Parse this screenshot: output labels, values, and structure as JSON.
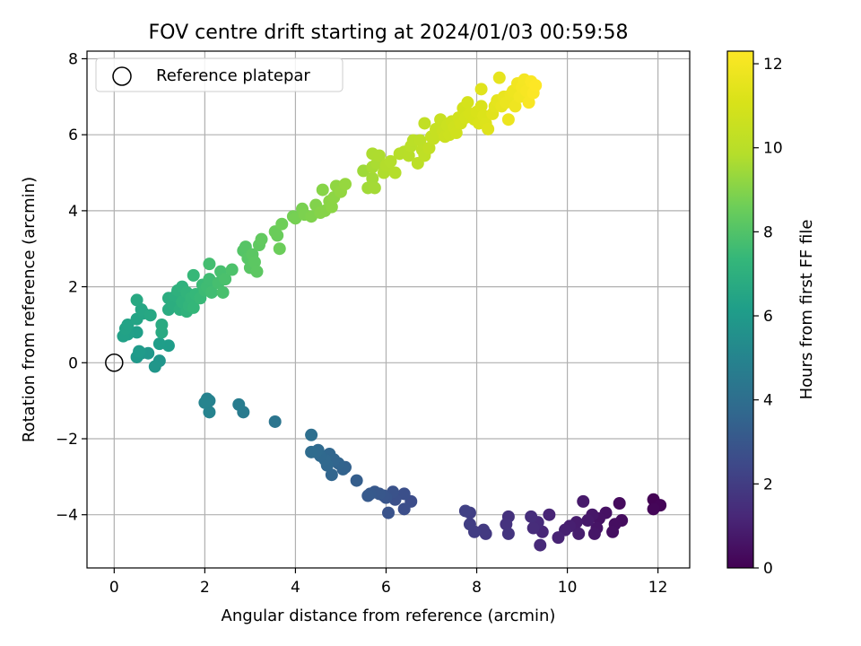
{
  "chart_data": {
    "type": "scatter",
    "title": "FOV centre drift starting at 2024/01/03 00:59:58",
    "xlabel": "Angular distance from reference (arcmin)",
    "ylabel": "Rotation from reference (arcmin)",
    "xlim": [
      -0.6,
      12.7
    ],
    "ylim": [
      -5.4,
      8.2
    ],
    "xticks": [
      0,
      2,
      4,
      6,
      8,
      10,
      12
    ],
    "yticks": [
      -4,
      -2,
      0,
      2,
      4,
      6,
      8
    ],
    "xtick_labels": [
      "0",
      "2",
      "4",
      "6",
      "8",
      "10",
      "12"
    ],
    "ytick_labels": [
      "−4",
      "−2",
      "0",
      "2",
      "4",
      "6",
      "8"
    ],
    "grid": true,
    "legend": {
      "position": "top-left",
      "entries": [
        "Reference platepar"
      ]
    },
    "reference_point": {
      "x": 0,
      "y": 0
    },
    "colorbar": {
      "label": "Hours from first FF file",
      "range": [
        0,
        12.3
      ],
      "ticks": [
        0,
        2,
        4,
        6,
        8,
        10,
        12
      ],
      "tick_labels": [
        "0",
        "2",
        "4",
        "6",
        "8",
        "10",
        "12"
      ],
      "colormap": "viridis"
    },
    "points": [
      {
        "x": 11.9,
        "y": -3.6,
        "h": 0.05
      },
      {
        "x": 12.05,
        "y": -3.75,
        "h": 0.1
      },
      {
        "x": 11.9,
        "y": -3.85,
        "h": 0.15
      },
      {
        "x": 11.15,
        "y": -3.7,
        "h": 0.3
      },
      {
        "x": 11.2,
        "y": -4.15,
        "h": 0.35
      },
      {
        "x": 11.05,
        "y": -4.25,
        "h": 0.4
      },
      {
        "x": 11.0,
        "y": -4.45,
        "h": 0.45
      },
      {
        "x": 10.85,
        "y": -3.95,
        "h": 0.5
      },
      {
        "x": 10.7,
        "y": -4.1,
        "h": 0.55
      },
      {
        "x": 10.65,
        "y": -4.35,
        "h": 0.6
      },
      {
        "x": 10.6,
        "y": -4.5,
        "h": 0.65
      },
      {
        "x": 10.55,
        "y": -4.0,
        "h": 0.7
      },
      {
        "x": 10.45,
        "y": -4.15,
        "h": 0.75
      },
      {
        "x": 10.35,
        "y": -3.65,
        "h": 0.8
      },
      {
        "x": 10.2,
        "y": -4.2,
        "h": 0.85
      },
      {
        "x": 10.25,
        "y": -4.5,
        "h": 0.9
      },
      {
        "x": 10.05,
        "y": -4.3,
        "h": 0.95
      },
      {
        "x": 9.95,
        "y": -4.4,
        "h": 1.0
      },
      {
        "x": 9.8,
        "y": -4.6,
        "h": 1.1
      },
      {
        "x": 9.6,
        "y": -4.0,
        "h": 1.15
      },
      {
        "x": 9.45,
        "y": -4.45,
        "h": 1.2
      },
      {
        "x": 9.4,
        "y": -4.8,
        "h": 1.3
      },
      {
        "x": 9.35,
        "y": -4.2,
        "h": 1.35
      },
      {
        "x": 9.25,
        "y": -4.35,
        "h": 1.4
      },
      {
        "x": 9.2,
        "y": -4.05,
        "h": 1.45
      },
      {
        "x": 8.7,
        "y": -4.05,
        "h": 1.6
      },
      {
        "x": 8.65,
        "y": -4.25,
        "h": 1.65
      },
      {
        "x": 8.7,
        "y": -4.5,
        "h": 1.7
      },
      {
        "x": 8.2,
        "y": -4.5,
        "h": 1.85
      },
      {
        "x": 8.15,
        "y": -4.4,
        "h": 1.9
      },
      {
        "x": 7.95,
        "y": -4.45,
        "h": 2.0
      },
      {
        "x": 7.85,
        "y": -4.25,
        "h": 2.05
      },
      {
        "x": 7.85,
        "y": -3.95,
        "h": 2.1
      },
      {
        "x": 7.75,
        "y": -3.9,
        "h": 2.15
      },
      {
        "x": 6.55,
        "y": -3.65,
        "h": 2.6
      },
      {
        "x": 6.4,
        "y": -3.85,
        "h": 2.65
      },
      {
        "x": 6.4,
        "y": -3.45,
        "h": 2.7
      },
      {
        "x": 6.2,
        "y": -3.6,
        "h": 2.75
      },
      {
        "x": 6.15,
        "y": -3.4,
        "h": 2.8
      },
      {
        "x": 6.05,
        "y": -3.95,
        "h": 2.85
      },
      {
        "x": 6.0,
        "y": -3.55,
        "h": 2.9
      },
      {
        "x": 5.95,
        "y": -3.5,
        "h": 2.95
      },
      {
        "x": 5.85,
        "y": -3.45,
        "h": 3.0
      },
      {
        "x": 5.75,
        "y": -3.4,
        "h": 3.05
      },
      {
        "x": 5.65,
        "y": -3.45,
        "h": 3.1
      },
      {
        "x": 5.6,
        "y": -3.5,
        "h": 3.15
      },
      {
        "x": 5.35,
        "y": -3.1,
        "h": 3.3
      },
      {
        "x": 5.1,
        "y": -2.75,
        "h": 3.45
      },
      {
        "x": 5.05,
        "y": -2.8,
        "h": 3.5
      },
      {
        "x": 4.95,
        "y": -2.65,
        "h": 3.55
      },
      {
        "x": 4.85,
        "y": -2.55,
        "h": 3.6
      },
      {
        "x": 4.8,
        "y": -2.95,
        "h": 3.62
      },
      {
        "x": 4.75,
        "y": -2.4,
        "h": 3.65
      },
      {
        "x": 4.7,
        "y": -2.7,
        "h": 3.7
      },
      {
        "x": 4.65,
        "y": -2.55,
        "h": 3.72
      },
      {
        "x": 4.55,
        "y": -2.45,
        "h": 3.75
      },
      {
        "x": 4.5,
        "y": -2.3,
        "h": 3.8
      },
      {
        "x": 4.45,
        "y": -2.35,
        "h": 3.85
      },
      {
        "x": 4.35,
        "y": -2.35,
        "h": 3.9
      },
      {
        "x": 4.35,
        "y": -1.9,
        "h": 4.0
      },
      {
        "x": 3.55,
        "y": -1.55,
        "h": 4.3
      },
      {
        "x": 2.85,
        "y": -1.3,
        "h": 4.6
      },
      {
        "x": 2.75,
        "y": -1.1,
        "h": 4.65
      },
      {
        "x": 2.1,
        "y": -1.0,
        "h": 4.85
      },
      {
        "x": 2.05,
        "y": -0.95,
        "h": 4.9
      },
      {
        "x": 2.1,
        "y": -1.3,
        "h": 4.95
      },
      {
        "x": 2.0,
        "y": -1.05,
        "h": 5.0
      },
      {
        "x": 1.0,
        "y": 0.05,
        "h": 5.75
      },
      {
        "x": 0.9,
        "y": -0.1,
        "h": 5.8
      },
      {
        "x": 0.75,
        "y": 0.25,
        "h": 5.85
      },
      {
        "x": 0.6,
        "y": 0.25,
        "h": 5.9
      },
      {
        "x": 0.5,
        "y": 0.15,
        "h": 5.95
      },
      {
        "x": 0.55,
        "y": 0.3,
        "h": 6.0
      },
      {
        "x": 1.2,
        "y": 0.45,
        "h": 6.1
      },
      {
        "x": 1.0,
        "y": 0.5,
        "h": 6.15
      },
      {
        "x": 0.5,
        "y": 0.8,
        "h": 6.2
      },
      {
        "x": 0.3,
        "y": 0.75,
        "h": 6.25
      },
      {
        "x": 0.2,
        "y": 0.7,
        "h": 6.3
      },
      {
        "x": 0.25,
        "y": 0.9,
        "h": 6.35
      },
      {
        "x": 0.3,
        "y": 1.0,
        "h": 6.4
      },
      {
        "x": 0.5,
        "y": 1.15,
        "h": 6.45
      },
      {
        "x": 0.65,
        "y": 1.3,
        "h": 6.5
      },
      {
        "x": 0.6,
        "y": 1.4,
        "h": 6.55
      },
      {
        "x": 0.8,
        "y": 1.25,
        "h": 6.6
      },
      {
        "x": 0.5,
        "y": 1.65,
        "h": 6.65
      },
      {
        "x": 1.05,
        "y": 0.8,
        "h": 6.7
      },
      {
        "x": 1.05,
        "y": 1.0,
        "h": 6.75
      },
      {
        "x": 1.2,
        "y": 1.4,
        "h": 6.8
      },
      {
        "x": 1.2,
        "y": 1.7,
        "h": 6.85
      },
      {
        "x": 1.3,
        "y": 1.55,
        "h": 6.9
      },
      {
        "x": 1.35,
        "y": 1.75,
        "h": 6.95
      },
      {
        "x": 1.45,
        "y": 1.4,
        "h": 7.0
      },
      {
        "x": 1.4,
        "y": 1.9,
        "h": 7.05
      },
      {
        "x": 1.5,
        "y": 2.0,
        "h": 7.1
      },
      {
        "x": 1.5,
        "y": 1.6,
        "h": 7.12
      },
      {
        "x": 1.6,
        "y": 1.35,
        "h": 7.15
      },
      {
        "x": 1.6,
        "y": 1.85,
        "h": 7.2
      },
      {
        "x": 1.65,
        "y": 1.5,
        "h": 7.25
      },
      {
        "x": 1.7,
        "y": 1.7,
        "h": 7.3
      },
      {
        "x": 1.75,
        "y": 1.45,
        "h": 7.35
      },
      {
        "x": 1.8,
        "y": 1.8,
        "h": 7.38
      },
      {
        "x": 1.75,
        "y": 2.3,
        "h": 7.4
      },
      {
        "x": 1.9,
        "y": 1.7,
        "h": 7.45
      },
      {
        "x": 1.95,
        "y": 2.05,
        "h": 7.5
      },
      {
        "x": 2.0,
        "y": 1.9,
        "h": 7.55
      },
      {
        "x": 2.05,
        "y": 2.0,
        "h": 7.6
      },
      {
        "x": 2.1,
        "y": 2.2,
        "h": 7.62
      },
      {
        "x": 2.15,
        "y": 1.85,
        "h": 7.65
      },
      {
        "x": 2.1,
        "y": 2.6,
        "h": 7.7
      },
      {
        "x": 2.3,
        "y": 2.1,
        "h": 7.75
      },
      {
        "x": 2.35,
        "y": 2.4,
        "h": 7.8
      },
      {
        "x": 2.4,
        "y": 1.85,
        "h": 7.82
      },
      {
        "x": 2.45,
        "y": 2.2,
        "h": 7.85
      },
      {
        "x": 2.6,
        "y": 2.45,
        "h": 7.9
      },
      {
        "x": 2.85,
        "y": 2.95,
        "h": 8.05
      },
      {
        "x": 2.9,
        "y": 3.05,
        "h": 8.1
      },
      {
        "x": 2.95,
        "y": 2.75,
        "h": 8.12
      },
      {
        "x": 3.0,
        "y": 2.5,
        "h": 8.15
      },
      {
        "x": 3.05,
        "y": 2.85,
        "h": 8.2
      },
      {
        "x": 3.1,
        "y": 2.65,
        "h": 8.22
      },
      {
        "x": 3.15,
        "y": 2.4,
        "h": 8.25
      },
      {
        "x": 3.2,
        "y": 3.1,
        "h": 8.3
      },
      {
        "x": 3.25,
        "y": 3.25,
        "h": 8.35
      },
      {
        "x": 3.6,
        "y": 3.35,
        "h": 8.5
      },
      {
        "x": 3.55,
        "y": 3.45,
        "h": 8.52
      },
      {
        "x": 3.65,
        "y": 3.0,
        "h": 8.55
      },
      {
        "x": 3.7,
        "y": 3.65,
        "h": 8.6
      },
      {
        "x": 3.95,
        "y": 3.85,
        "h": 8.7
      },
      {
        "x": 4.0,
        "y": 3.8,
        "h": 8.75
      },
      {
        "x": 4.15,
        "y": 4.05,
        "h": 8.8
      },
      {
        "x": 4.2,
        "y": 3.9,
        "h": 8.85
      },
      {
        "x": 4.35,
        "y": 3.85,
        "h": 8.9
      },
      {
        "x": 4.45,
        "y": 4.15,
        "h": 8.95
      },
      {
        "x": 4.55,
        "y": 3.95,
        "h": 9.0
      },
      {
        "x": 4.65,
        "y": 4.0,
        "h": 9.02
      },
      {
        "x": 4.6,
        "y": 4.55,
        "h": 9.05
      },
      {
        "x": 4.75,
        "y": 4.25,
        "h": 9.1
      },
      {
        "x": 4.8,
        "y": 4.1,
        "h": 9.12
      },
      {
        "x": 4.85,
        "y": 4.35,
        "h": 9.15
      },
      {
        "x": 4.9,
        "y": 4.65,
        "h": 9.2
      },
      {
        "x": 5.0,
        "y": 4.5,
        "h": 9.25
      },
      {
        "x": 5.1,
        "y": 4.7,
        "h": 9.3
      },
      {
        "x": 5.5,
        "y": 5.05,
        "h": 9.45
      },
      {
        "x": 5.6,
        "y": 4.6,
        "h": 9.5
      },
      {
        "x": 5.7,
        "y": 4.85,
        "h": 9.52
      },
      {
        "x": 5.75,
        "y": 4.6,
        "h": 9.55
      },
      {
        "x": 5.7,
        "y": 5.15,
        "h": 9.6
      },
      {
        "x": 5.8,
        "y": 5.25,
        "h": 9.65
      },
      {
        "x": 5.7,
        "y": 5.5,
        "h": 9.7
      },
      {
        "x": 5.85,
        "y": 5.45,
        "h": 9.72
      },
      {
        "x": 5.95,
        "y": 5.0,
        "h": 9.75
      },
      {
        "x": 6.0,
        "y": 5.2,
        "h": 9.8
      },
      {
        "x": 6.1,
        "y": 5.3,
        "h": 9.82
      },
      {
        "x": 6.2,
        "y": 5.0,
        "h": 9.85
      },
      {
        "x": 6.3,
        "y": 5.5,
        "h": 9.9
      },
      {
        "x": 6.4,
        "y": 5.55,
        "h": 9.92
      },
      {
        "x": 6.5,
        "y": 5.45,
        "h": 9.95
      },
      {
        "x": 6.55,
        "y": 5.7,
        "h": 10.0
      },
      {
        "x": 6.6,
        "y": 5.85,
        "h": 10.05
      },
      {
        "x": 6.7,
        "y": 5.25,
        "h": 10.1
      },
      {
        "x": 6.75,
        "y": 5.85,
        "h": 10.12
      },
      {
        "x": 6.8,
        "y": 5.6,
        "h": 10.15
      },
      {
        "x": 6.85,
        "y": 5.45,
        "h": 10.2
      },
      {
        "x": 6.85,
        "y": 6.3,
        "h": 10.25
      },
      {
        "x": 6.95,
        "y": 5.65,
        "h": 10.3
      },
      {
        "x": 7.0,
        "y": 5.95,
        "h": 10.35
      },
      {
        "x": 7.05,
        "y": 5.9,
        "h": 10.4
      },
      {
        "x": 7.1,
        "y": 6.15,
        "h": 10.42
      },
      {
        "x": 7.15,
        "y": 6.0,
        "h": 10.45
      },
      {
        "x": 7.2,
        "y": 6.4,
        "h": 10.5
      },
      {
        "x": 7.25,
        "y": 6.1,
        "h": 10.55
      },
      {
        "x": 7.3,
        "y": 5.95,
        "h": 10.6
      },
      {
        "x": 7.35,
        "y": 6.25,
        "h": 10.62
      },
      {
        "x": 7.4,
        "y": 6.0,
        "h": 10.65
      },
      {
        "x": 7.45,
        "y": 6.35,
        "h": 10.7
      },
      {
        "x": 7.5,
        "y": 6.2,
        "h": 10.75
      },
      {
        "x": 7.55,
        "y": 6.05,
        "h": 10.8
      },
      {
        "x": 7.6,
        "y": 6.45,
        "h": 10.82
      },
      {
        "x": 7.65,
        "y": 6.3,
        "h": 10.85
      },
      {
        "x": 7.7,
        "y": 6.7,
        "h": 10.9
      },
      {
        "x": 7.75,
        "y": 6.45,
        "h": 10.92
      },
      {
        "x": 7.8,
        "y": 6.85,
        "h": 10.95
      },
      {
        "x": 7.85,
        "y": 6.55,
        "h": 11.0
      },
      {
        "x": 7.95,
        "y": 6.4,
        "h": 11.05
      },
      {
        "x": 8.0,
        "y": 6.6,
        "h": 11.1
      },
      {
        "x": 8.05,
        "y": 6.3,
        "h": 11.12
      },
      {
        "x": 8.1,
        "y": 6.75,
        "h": 11.15
      },
      {
        "x": 8.15,
        "y": 6.5,
        "h": 11.2
      },
      {
        "x": 8.2,
        "y": 6.3,
        "h": 11.25
      },
      {
        "x": 8.25,
        "y": 6.15,
        "h": 11.3
      },
      {
        "x": 8.1,
        "y": 7.2,
        "h": 11.35
      },
      {
        "x": 8.35,
        "y": 6.55,
        "h": 11.4
      },
      {
        "x": 8.4,
        "y": 6.75,
        "h": 11.45
      },
      {
        "x": 8.45,
        "y": 6.9,
        "h": 11.5
      },
      {
        "x": 8.5,
        "y": 7.5,
        "h": 11.55
      },
      {
        "x": 8.55,
        "y": 6.75,
        "h": 11.6
      },
      {
        "x": 8.6,
        "y": 7.0,
        "h": 11.65
      },
      {
        "x": 8.65,
        "y": 6.85,
        "h": 11.7
      },
      {
        "x": 8.7,
        "y": 6.4,
        "h": 11.72
      },
      {
        "x": 8.75,
        "y": 7.05,
        "h": 11.75
      },
      {
        "x": 8.8,
        "y": 7.15,
        "h": 11.8
      },
      {
        "x": 8.85,
        "y": 6.75,
        "h": 11.85
      },
      {
        "x": 8.9,
        "y": 7.35,
        "h": 11.9
      },
      {
        "x": 8.95,
        "y": 7.0,
        "h": 11.95
      },
      {
        "x": 9.0,
        "y": 7.25,
        "h": 12.0
      },
      {
        "x": 9.05,
        "y": 7.45,
        "h": 12.05
      },
      {
        "x": 9.1,
        "y": 7.15,
        "h": 12.1
      },
      {
        "x": 9.15,
        "y": 6.85,
        "h": 12.15
      },
      {
        "x": 9.2,
        "y": 7.4,
        "h": 12.2
      },
      {
        "x": 9.25,
        "y": 7.1,
        "h": 12.25
      },
      {
        "x": 9.3,
        "y": 7.3,
        "h": 12.3
      }
    ]
  }
}
